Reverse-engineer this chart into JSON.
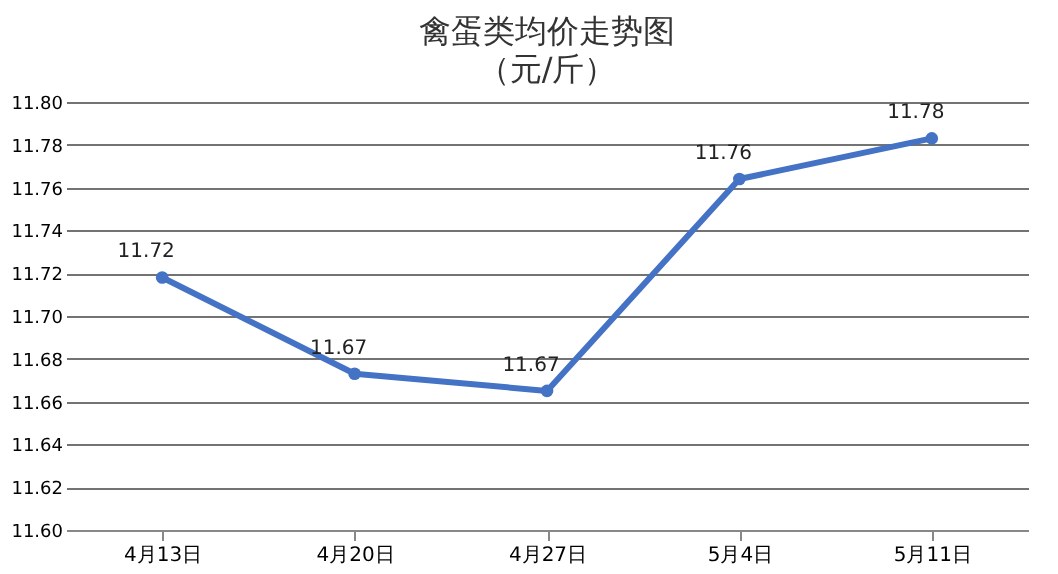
{
  "chart_data": {
    "type": "line",
    "title": "禽蛋类均价走势图",
    "subtitle": "（元/斤）",
    "categories": [
      "4月13日",
      "4月20日",
      "4月27日",
      "5月4日",
      "5月11日"
    ],
    "series": [
      {
        "color": "#4472c4",
        "values": [
          11.718,
          11.673,
          11.665,
          11.764,
          11.783
        ],
        "value_labels": [
          "11.72",
          "11.67",
          "11.67",
          "11.76",
          "11.78"
        ]
      }
    ],
    "ylim": [
      11.6,
      11.8
    ],
    "yticks": [
      {
        "value": 11.6,
        "label": "11.60"
      },
      {
        "value": 11.62,
        "label": "11.62"
      },
      {
        "value": 11.64,
        "label": "11.64"
      },
      {
        "value": 11.66,
        "label": "11.66"
      },
      {
        "value": 11.68,
        "label": "11.68"
      },
      {
        "value": 11.7,
        "label": "11.70"
      },
      {
        "value": 11.72,
        "label": "11.72"
      },
      {
        "value": 11.74,
        "label": "11.74"
      },
      {
        "value": 11.76,
        "label": "11.76"
      },
      {
        "value": 11.78,
        "label": "11.78"
      },
      {
        "value": 11.8,
        "label": "11.80"
      }
    ],
    "grid": "y",
    "legend": false,
    "marker": "circle",
    "line_style": "solid"
  }
}
